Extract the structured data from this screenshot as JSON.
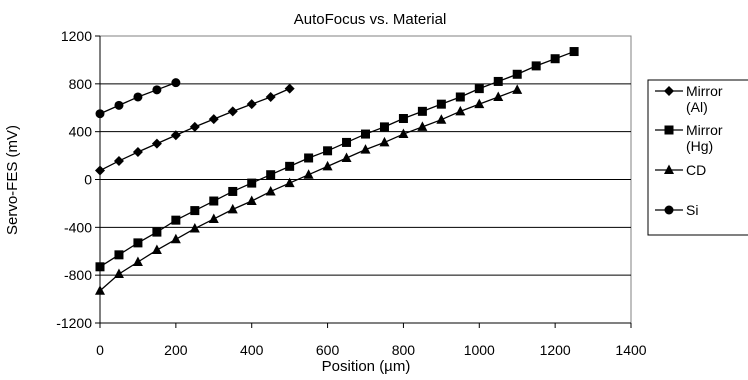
{
  "chart_data": {
    "type": "line",
    "title": "AutoFocus vs. Material",
    "xlabel": "Position (µm)",
    "ylabel": "Servo-FES (mV)",
    "xlim": [
      0,
      1400
    ],
    "ylim": [
      -1200,
      1200
    ],
    "xticks": [
      "0",
      "200",
      "400",
      "600",
      "800",
      "1000",
      "1200",
      "1400"
    ],
    "yticks": [
      "-1200",
      "-800",
      "-400",
      "0",
      "400",
      "800",
      "1200"
    ],
    "grid": "horizontal major gridlines",
    "legend_position": "right",
    "series": [
      {
        "name": "Mirror (Al)",
        "legend_lines": [
          "Mirror",
          "(Al)"
        ],
        "marker": "diamond",
        "x": [
          0,
          50,
          100,
          150,
          200,
          250,
          300,
          350,
          400,
          450,
          500
        ],
        "y": [
          75,
          155,
          230,
          300,
          370,
          440,
          505,
          570,
          630,
          690,
          760
        ]
      },
      {
        "name": "Mirror (Hg)",
        "legend_lines": [
          "Mirror",
          "(Hg)"
        ],
        "marker": "square",
        "x": [
          0,
          50,
          100,
          150,
          200,
          250,
          300,
          350,
          400,
          450,
          500,
          550,
          600,
          650,
          700,
          750,
          800,
          850,
          900,
          950,
          1000,
          1050,
          1100,
          1150,
          1200,
          1250
        ],
        "y": [
          -730,
          -630,
          -530,
          -440,
          -340,
          -260,
          -180,
          -100,
          -30,
          40,
          110,
          180,
          240,
          310,
          380,
          440,
          510,
          570,
          630,
          690,
          760,
          820,
          880,
          950,
          1010,
          1070
        ]
      },
      {
        "name": "CD",
        "legend_lines": [
          "CD"
        ],
        "marker": "triangle",
        "x": [
          0,
          50,
          100,
          150,
          200,
          250,
          300,
          350,
          400,
          450,
          500,
          550,
          600,
          650,
          700,
          750,
          800,
          850,
          900,
          950,
          1000,
          1050,
          1100
        ],
        "y": [
          -930,
          -790,
          -690,
          -590,
          -500,
          -410,
          -330,
          -250,
          -180,
          -100,
          -30,
          40,
          110,
          180,
          250,
          310,
          380,
          440,
          500,
          570,
          630,
          690,
          750
        ]
      },
      {
        "name": "Si",
        "legend_lines": [
          "Si"
        ],
        "marker": "circle",
        "x": [
          0,
          50,
          100,
          150,
          200
        ],
        "y": [
          550,
          620,
          690,
          750,
          810
        ]
      }
    ]
  }
}
